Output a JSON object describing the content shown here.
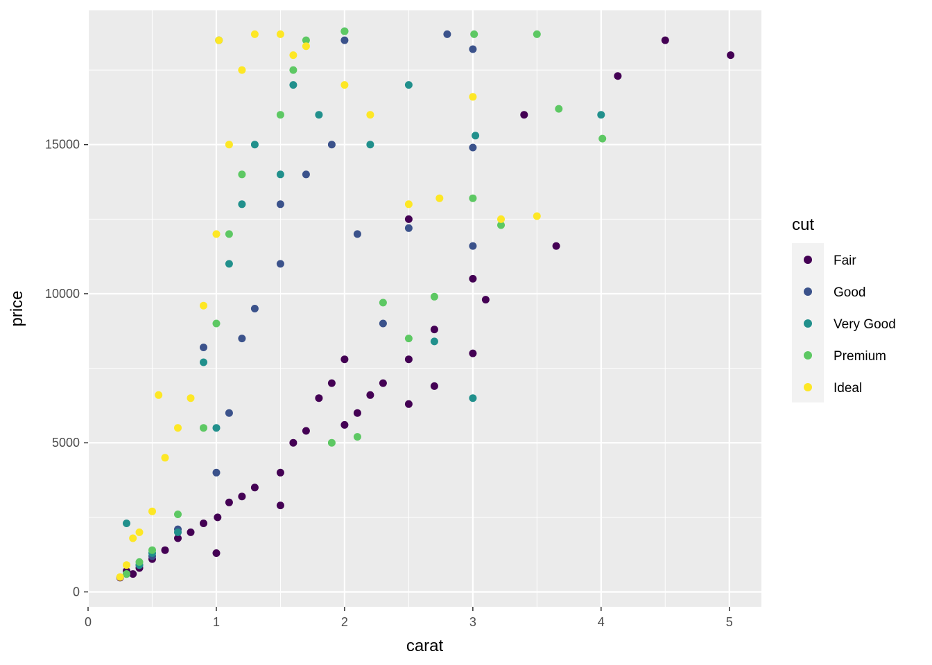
{
  "chart_data": {
    "type": "scatter",
    "xlabel": "carat",
    "ylabel": "price",
    "xlim": [
      0,
      5.25
    ],
    "ylim": [
      -500,
      19500
    ],
    "x_ticks": [
      {
        "value": 0,
        "label": "0"
      },
      {
        "value": 1,
        "label": "1"
      },
      {
        "value": 2,
        "label": "2"
      },
      {
        "value": 3,
        "label": "3"
      },
      {
        "value": 4,
        "label": "4"
      },
      {
        "value": 5,
        "label": "5"
      }
    ],
    "y_ticks": [
      {
        "value": 0,
        "label": "0"
      },
      {
        "value": 5000,
        "label": "5000"
      },
      {
        "value": 10000,
        "label": "10000"
      },
      {
        "value": 15000,
        "label": "15000"
      }
    ],
    "grid": true,
    "legend": {
      "title": "cut",
      "position": "right",
      "entries": [
        {
          "name": "Fair",
          "color": "#440154"
        },
        {
          "name": "Good",
          "color": "#3B528B"
        },
        {
          "name": "Very Good",
          "color": "#21908C"
        },
        {
          "name": "Premium",
          "color": "#5DC863"
        },
        {
          "name": "Ideal",
          "color": "#FDE725"
        }
      ]
    },
    "series": [
      {
        "name": "Fair",
        "color": "#440154",
        "x": [
          0.25,
          0.3,
          0.35,
          0.4,
          0.5,
          0.6,
          0.7,
          0.8,
          0.9,
          1.0,
          1.01,
          1.1,
          1.2,
          1.3,
          1.5,
          1.5,
          1.6,
          1.7,
          1.8,
          1.9,
          2.0,
          2.0,
          2.1,
          2.2,
          2.3,
          2.5,
          2.5,
          2.5,
          2.7,
          2.7,
          3.0,
          3.0,
          3.1,
          3.4,
          3.65,
          4.13,
          4.5,
          5.01
        ],
        "y": [
          480,
          700,
          600,
          800,
          1100,
          1400,
          1800,
          2000,
          2300,
          1300,
          2500,
          3000,
          3200,
          3500,
          2900,
          4000,
          5000,
          5400,
          6500,
          7000,
          7800,
          5600,
          6000,
          6600,
          7000,
          6300,
          7800,
          12500,
          6900,
          8800,
          10500,
          8000,
          9800,
          16000,
          11600,
          17300,
          18500,
          18000
        ]
      },
      {
        "name": "Good",
        "color": "#3B528B",
        "x": [
          0.3,
          0.4,
          0.5,
          0.7,
          0.9,
          1.0,
          1.1,
          1.2,
          1.3,
          1.5,
          1.5,
          1.7,
          1.9,
          2.0,
          2.1,
          2.3,
          2.5,
          2.8,
          3.0,
          3.0,
          3.0
        ],
        "y": [
          600,
          900,
          1200,
          2100,
          8200,
          4000,
          6000,
          8500,
          9500,
          11000,
          13000,
          14000,
          15000,
          18500,
          12000,
          9000,
          12200,
          18700,
          18200,
          14900,
          11600
        ]
      },
      {
        "name": "Very Good",
        "color": "#21908C",
        "x": [
          0.3,
          0.4,
          0.5,
          0.7,
          0.9,
          1.0,
          1.02,
          1.1,
          1.2,
          1.3,
          1.5,
          1.6,
          1.8,
          2.0,
          2.2,
          2.5,
          2.7,
          3.0,
          3.02,
          4.0
        ],
        "y": [
          2300,
          900,
          1300,
          2000,
          7700,
          5500,
          18500,
          11000,
          13000,
          15000,
          14000,
          17000,
          16000,
          18800,
          15000,
          17000,
          8400,
          6500,
          15300,
          16000
        ]
      },
      {
        "name": "Premium",
        "color": "#5DC863",
        "x": [
          0.3,
          0.4,
          0.5,
          0.7,
          0.9,
          1.0,
          1.1,
          1.2,
          1.5,
          1.6,
          1.7,
          1.9,
          2.0,
          2.1,
          2.3,
          2.5,
          2.7,
          3.0,
          3.01,
          3.22,
          3.5,
          3.67,
          4.01
        ],
        "y": [
          600,
          1000,
          1400,
          2600,
          5500,
          9000,
          12000,
          14000,
          16000,
          17500,
          18500,
          5000,
          18800,
          5200,
          9700,
          8500,
          9900,
          13200,
          18700,
          12300,
          18700,
          16200,
          15200
        ]
      },
      {
        "name": "Ideal",
        "color": "#FDE725",
        "x": [
          0.25,
          0.3,
          0.35,
          0.4,
          0.5,
          0.55,
          0.6,
          0.7,
          0.8,
          0.9,
          1.0,
          1.02,
          1.1,
          1.2,
          1.3,
          1.5,
          1.6,
          1.7,
          2.0,
          2.2,
          2.5,
          2.74,
          3.0,
          3.22,
          3.5
        ],
        "y": [
          500,
          900,
          1800,
          2000,
          2700,
          6600,
          4500,
          5500,
          6500,
          9600,
          12000,
          18500,
          15000,
          17500,
          18700,
          18700,
          18000,
          18300,
          17000,
          16000,
          13000,
          13200,
          16600,
          12500,
          12600
        ]
      }
    ]
  }
}
